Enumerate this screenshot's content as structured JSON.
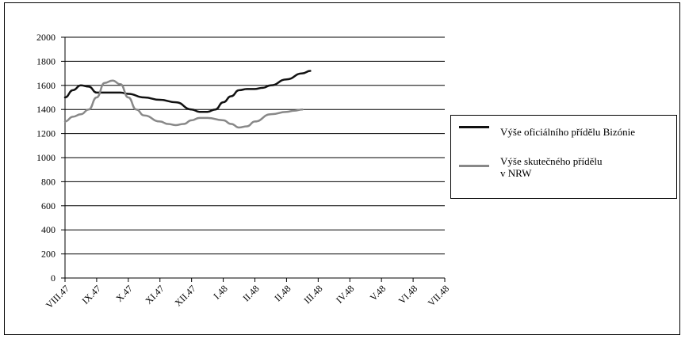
{
  "chart_data": {
    "type": "line",
    "title": "",
    "xlabel": "",
    "ylabel": "",
    "ylim": [
      0,
      2000
    ],
    "yticks": [
      0,
      200,
      400,
      600,
      800,
      1000,
      1200,
      1400,
      1600,
      1800,
      2000
    ],
    "categories": [
      "VIII.47",
      "IX.47",
      "X.47",
      "XI.47",
      "XII.47",
      "I.48",
      "II.48",
      "II.48",
      "III.48",
      "IV.48",
      "V.48",
      "VI.48",
      "VII.48"
    ],
    "grid": "horizontal",
    "legend_position": "right",
    "series": [
      {
        "name": "Výše oficiálního přídělu Bizónie",
        "color": "#111111",
        "values": [
          [
            0.0,
            1500
          ],
          [
            0.5,
            1560
          ],
          [
            1.0,
            1600
          ],
          [
            1.5,
            1590
          ],
          [
            2.0,
            1540
          ],
          [
            2.5,
            1540
          ],
          [
            3.0,
            1540
          ],
          [
            3.5,
            1540
          ],
          [
            4.0,
            1530
          ],
          [
            5.0,
            1500
          ],
          [
            6.0,
            1480
          ],
          [
            7.0,
            1460
          ],
          [
            8.0,
            1400
          ],
          [
            8.5,
            1380
          ],
          [
            9.0,
            1380
          ],
          [
            9.5,
            1400
          ],
          [
            10.0,
            1460
          ],
          [
            10.5,
            1510
          ],
          [
            11.0,
            1560
          ],
          [
            11.5,
            1570
          ],
          [
            12.0,
            1570
          ],
          [
            12.5,
            1580
          ],
          [
            13.0,
            1600
          ],
          [
            14.0,
            1650
          ],
          [
            15.0,
            1700
          ],
          [
            15.5,
            1720
          ]
        ]
      },
      {
        "name": "Výše skutečného přídělu\nv NRW",
        "color": "#888888",
        "values": [
          [
            0.0,
            1300
          ],
          [
            0.5,
            1340
          ],
          [
            1.0,
            1360
          ],
          [
            1.5,
            1400
          ],
          [
            2.0,
            1500
          ],
          [
            2.5,
            1620
          ],
          [
            3.0,
            1640
          ],
          [
            3.5,
            1610
          ],
          [
            4.0,
            1500
          ],
          [
            4.5,
            1400
          ],
          [
            5.0,
            1350
          ],
          [
            6.0,
            1300
          ],
          [
            6.5,
            1280
          ],
          [
            7.0,
            1270
          ],
          [
            7.5,
            1280
          ],
          [
            8.0,
            1310
          ],
          [
            8.5,
            1330
          ],
          [
            9.0,
            1330
          ],
          [
            10.0,
            1310
          ],
          [
            10.5,
            1280
          ],
          [
            11.0,
            1250
          ],
          [
            11.5,
            1260
          ],
          [
            12.0,
            1300
          ],
          [
            13.0,
            1360
          ],
          [
            14.0,
            1380
          ],
          [
            14.5,
            1390
          ],
          [
            15.0,
            1400
          ]
        ]
      }
    ]
  }
}
